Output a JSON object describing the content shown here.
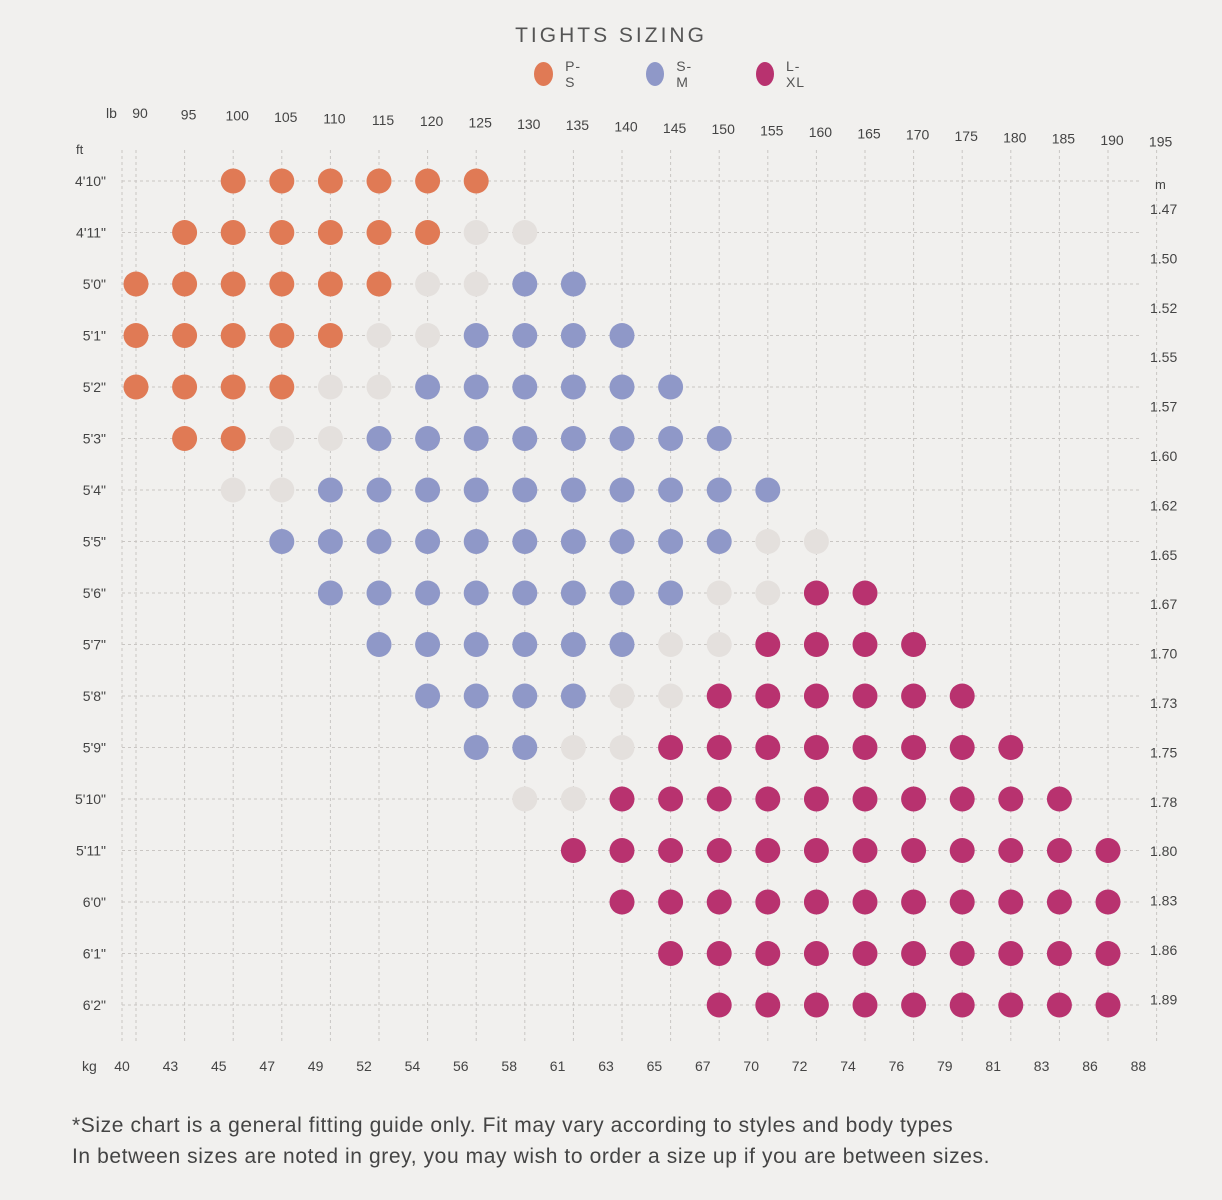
{
  "chart_data": {
    "type": "scatter",
    "title": "TIGHTS SIZING",
    "colors": {
      "P-S": "#e07a55",
      "S-M": "#8f98c8",
      "L-XL": "#b8326f",
      "between": "#e4e0dd"
    },
    "legend": [
      {
        "key": "P-S",
        "label": "P-S"
      },
      {
        "key": "S-M",
        "label": "S-M"
      },
      {
        "key": "L-XL",
        "label": "L-XL"
      }
    ],
    "legend_position": "top-center",
    "grid": true,
    "x_axis_lb": {
      "unit_label": "lb",
      "ticks": [
        "90",
        "95",
        "100",
        "105",
        "110",
        "115",
        "120",
        "125",
        "130",
        "135",
        "140",
        "145",
        "150",
        "155",
        "160",
        "165",
        "170",
        "175",
        "180",
        "185",
        "190",
        "195"
      ]
    },
    "x_axis_kg": {
      "unit_label": "kg",
      "ticks": [
        "40",
        "43",
        "45",
        "47",
        "49",
        "52",
        "54",
        "56",
        "58",
        "61",
        "63",
        "65",
        "67",
        "70",
        "72",
        "74",
        "76",
        "79",
        "81",
        "83",
        "86",
        "88"
      ]
    },
    "y_axis_ft": {
      "unit_label": "ft",
      "ticks": [
        "4'10\"",
        "4'11\"",
        "5'0\"",
        "5'1\"",
        "5'2\"",
        "5'3\"",
        "5'4\"",
        "5'5\"",
        "5'6\"",
        "5'7\"",
        "5'8\"",
        "5'9\"",
        "5'10\"",
        "5'11\"",
        "6'0\"",
        "6'1\"",
        "6'2\""
      ]
    },
    "y_axis_m": {
      "unit_label": "m",
      "ticks": [
        "1.47",
        "1.50",
        "1.52",
        "1.55",
        "1.57",
        "1.60",
        "1.62",
        "1.65",
        "1.67",
        "1.70",
        "1.73",
        "1.75",
        "1.78",
        "1.80",
        "1.83",
        "1.86",
        "1.89"
      ]
    },
    "series": [
      {
        "name": "P-S",
        "points": [
          {
            "lb": 100,
            "height": "4'10\""
          },
          {
            "lb": 105,
            "height": "4'10\""
          },
          {
            "lb": 110,
            "height": "4'10\""
          },
          {
            "lb": 115,
            "height": "4'10\""
          },
          {
            "lb": 120,
            "height": "4'10\""
          },
          {
            "lb": 125,
            "height": "4'10\""
          },
          {
            "lb": 95,
            "height": "4'11\""
          },
          {
            "lb": 100,
            "height": "4'11\""
          },
          {
            "lb": 105,
            "height": "4'11\""
          },
          {
            "lb": 110,
            "height": "4'11\""
          },
          {
            "lb": 115,
            "height": "4'11\""
          },
          {
            "lb": 120,
            "height": "4'11\""
          },
          {
            "lb": 90,
            "height": "5'0\""
          },
          {
            "lb": 95,
            "height": "5'0\""
          },
          {
            "lb": 100,
            "height": "5'0\""
          },
          {
            "lb": 105,
            "height": "5'0\""
          },
          {
            "lb": 110,
            "height": "5'0\""
          },
          {
            "lb": 115,
            "height": "5'0\""
          },
          {
            "lb": 90,
            "height": "5'1\""
          },
          {
            "lb": 95,
            "height": "5'1\""
          },
          {
            "lb": 100,
            "height": "5'1\""
          },
          {
            "lb": 105,
            "height": "5'1\""
          },
          {
            "lb": 110,
            "height": "5'1\""
          },
          {
            "lb": 90,
            "height": "5'2\""
          },
          {
            "lb": 95,
            "height": "5'2\""
          },
          {
            "lb": 100,
            "height": "5'2\""
          },
          {
            "lb": 105,
            "height": "5'2\""
          },
          {
            "lb": 95,
            "height": "5'3\""
          },
          {
            "lb": 100,
            "height": "5'3\""
          }
        ]
      },
      {
        "name": "S-M",
        "points": [
          {
            "lb": 130,
            "height": "5'0\""
          },
          {
            "lb": 135,
            "height": "5'0\""
          },
          {
            "lb": 125,
            "height": "5'1\""
          },
          {
            "lb": 130,
            "height": "5'1\""
          },
          {
            "lb": 135,
            "height": "5'1\""
          },
          {
            "lb": 140,
            "height": "5'1\""
          },
          {
            "lb": 120,
            "height": "5'2\""
          },
          {
            "lb": 125,
            "height": "5'2\""
          },
          {
            "lb": 130,
            "height": "5'2\""
          },
          {
            "lb": 135,
            "height": "5'2\""
          },
          {
            "lb": 140,
            "height": "5'2\""
          },
          {
            "lb": 145,
            "height": "5'2\""
          },
          {
            "lb": 115,
            "height": "5'3\""
          },
          {
            "lb": 120,
            "height": "5'3\""
          },
          {
            "lb": 125,
            "height": "5'3\""
          },
          {
            "lb": 130,
            "height": "5'3\""
          },
          {
            "lb": 135,
            "height": "5'3\""
          },
          {
            "lb": 140,
            "height": "5'3\""
          },
          {
            "lb": 145,
            "height": "5'3\""
          },
          {
            "lb": 150,
            "height": "5'3\""
          },
          {
            "lb": 110,
            "height": "5'4\""
          },
          {
            "lb": 115,
            "height": "5'4\""
          },
          {
            "lb": 120,
            "height": "5'4\""
          },
          {
            "lb": 125,
            "height": "5'4\""
          },
          {
            "lb": 130,
            "height": "5'4\""
          },
          {
            "lb": 135,
            "height": "5'4\""
          },
          {
            "lb": 140,
            "height": "5'4\""
          },
          {
            "lb": 145,
            "height": "5'4\""
          },
          {
            "lb": 150,
            "height": "5'4\""
          },
          {
            "lb": 155,
            "height": "5'4\""
          },
          {
            "lb": 105,
            "height": "5'5\""
          },
          {
            "lb": 110,
            "height": "5'5\""
          },
          {
            "lb": 115,
            "height": "5'5\""
          },
          {
            "lb": 120,
            "height": "5'5\""
          },
          {
            "lb": 125,
            "height": "5'5\""
          },
          {
            "lb": 130,
            "height": "5'5\""
          },
          {
            "lb": 135,
            "height": "5'5\""
          },
          {
            "lb": 140,
            "height": "5'5\""
          },
          {
            "lb": 145,
            "height": "5'5\""
          },
          {
            "lb": 150,
            "height": "5'5\""
          },
          {
            "lb": 110,
            "height": "5'6\""
          },
          {
            "lb": 115,
            "height": "5'6\""
          },
          {
            "lb": 120,
            "height": "5'6\""
          },
          {
            "lb": 125,
            "height": "5'6\""
          },
          {
            "lb": 130,
            "height": "5'6\""
          },
          {
            "lb": 135,
            "height": "5'6\""
          },
          {
            "lb": 140,
            "height": "5'6\""
          },
          {
            "lb": 145,
            "height": "5'6\""
          },
          {
            "lb": 115,
            "height": "5'7\""
          },
          {
            "lb": 120,
            "height": "5'7\""
          },
          {
            "lb": 125,
            "height": "5'7\""
          },
          {
            "lb": 130,
            "height": "5'7\""
          },
          {
            "lb": 135,
            "height": "5'7\""
          },
          {
            "lb": 140,
            "height": "5'7\""
          },
          {
            "lb": 120,
            "height": "5'8\""
          },
          {
            "lb": 125,
            "height": "5'8\""
          },
          {
            "lb": 130,
            "height": "5'8\""
          },
          {
            "lb": 135,
            "height": "5'8\""
          },
          {
            "lb": 125,
            "height": "5'9\""
          },
          {
            "lb": 130,
            "height": "5'9\""
          }
        ]
      },
      {
        "name": "L-XL",
        "points": [
          {
            "lb": 160,
            "height": "5'6\""
          },
          {
            "lb": 165,
            "height": "5'6\""
          },
          {
            "lb": 155,
            "height": "5'7\""
          },
          {
            "lb": 160,
            "height": "5'7\""
          },
          {
            "lb": 165,
            "height": "5'7\""
          },
          {
            "lb": 170,
            "height": "5'7\""
          },
          {
            "lb": 150,
            "height": "5'8\""
          },
          {
            "lb": 155,
            "height": "5'8\""
          },
          {
            "lb": 160,
            "height": "5'8\""
          },
          {
            "lb": 165,
            "height": "5'8\""
          },
          {
            "lb": 170,
            "height": "5'8\""
          },
          {
            "lb": 175,
            "height": "5'8\""
          },
          {
            "lb": 145,
            "height": "5'9\""
          },
          {
            "lb": 150,
            "height": "5'9\""
          },
          {
            "lb": 155,
            "height": "5'9\""
          },
          {
            "lb": 160,
            "height": "5'9\""
          },
          {
            "lb": 165,
            "height": "5'9\""
          },
          {
            "lb": 170,
            "height": "5'9\""
          },
          {
            "lb": 175,
            "height": "5'9\""
          },
          {
            "lb": 180,
            "height": "5'9\""
          },
          {
            "lb": 140,
            "height": "5'10\""
          },
          {
            "lb": 145,
            "height": "5'10\""
          },
          {
            "lb": 150,
            "height": "5'10\""
          },
          {
            "lb": 155,
            "height": "5'10\""
          },
          {
            "lb": 160,
            "height": "5'10\""
          },
          {
            "lb": 165,
            "height": "5'10\""
          },
          {
            "lb": 170,
            "height": "5'10\""
          },
          {
            "lb": 175,
            "height": "5'10\""
          },
          {
            "lb": 180,
            "height": "5'10\""
          },
          {
            "lb": 185,
            "height": "5'10\""
          },
          {
            "lb": 135,
            "height": "5'11\""
          },
          {
            "lb": 140,
            "height": "5'11\""
          },
          {
            "lb": 145,
            "height": "5'11\""
          },
          {
            "lb": 150,
            "height": "5'11\""
          },
          {
            "lb": 155,
            "height": "5'11\""
          },
          {
            "lb": 160,
            "height": "5'11\""
          },
          {
            "lb": 165,
            "height": "5'11\""
          },
          {
            "lb": 170,
            "height": "5'11\""
          },
          {
            "lb": 175,
            "height": "5'11\""
          },
          {
            "lb": 180,
            "height": "5'11\""
          },
          {
            "lb": 185,
            "height": "5'11\""
          },
          {
            "lb": 190,
            "height": "5'11\""
          },
          {
            "lb": 140,
            "height": "6'0\""
          },
          {
            "lb": 145,
            "height": "6'0\""
          },
          {
            "lb": 150,
            "height": "6'0\""
          },
          {
            "lb": 155,
            "height": "6'0\""
          },
          {
            "lb": 160,
            "height": "6'0\""
          },
          {
            "lb": 165,
            "height": "6'0\""
          },
          {
            "lb": 170,
            "height": "6'0\""
          },
          {
            "lb": 175,
            "height": "6'0\""
          },
          {
            "lb": 180,
            "height": "6'0\""
          },
          {
            "lb": 185,
            "height": "6'0\""
          },
          {
            "lb": 190,
            "height": "6'0\""
          },
          {
            "lb": 145,
            "height": "6'1\""
          },
          {
            "lb": 150,
            "height": "6'1\""
          },
          {
            "lb": 155,
            "height": "6'1\""
          },
          {
            "lb": 160,
            "height": "6'1\""
          },
          {
            "lb": 165,
            "height": "6'1\""
          },
          {
            "lb": 170,
            "height": "6'1\""
          },
          {
            "lb": 175,
            "height": "6'1\""
          },
          {
            "lb": 180,
            "height": "6'1\""
          },
          {
            "lb": 185,
            "height": "6'1\""
          },
          {
            "lb": 190,
            "height": "6'1\""
          },
          {
            "lb": 150,
            "height": "6'2\""
          },
          {
            "lb": 155,
            "height": "6'2\""
          },
          {
            "lb": 160,
            "height": "6'2\""
          },
          {
            "lb": 165,
            "height": "6'2\""
          },
          {
            "lb": 170,
            "height": "6'2\""
          },
          {
            "lb": 175,
            "height": "6'2\""
          },
          {
            "lb": 180,
            "height": "6'2\""
          },
          {
            "lb": 185,
            "height": "6'2\""
          },
          {
            "lb": 190,
            "height": "6'2\""
          }
        ]
      },
      {
        "name": "between",
        "points": [
          {
            "lb": 125,
            "height": "4'11\""
          },
          {
            "lb": 130,
            "height": "4'11\""
          },
          {
            "lb": 120,
            "height": "5'0\""
          },
          {
            "lb": 125,
            "height": "5'0\""
          },
          {
            "lb": 115,
            "height": "5'1\""
          },
          {
            "lb": 120,
            "height": "5'1\""
          },
          {
            "lb": 110,
            "height": "5'2\""
          },
          {
            "lb": 115,
            "height": "5'2\""
          },
          {
            "lb": 105,
            "height": "5'3\""
          },
          {
            "lb": 110,
            "height": "5'3\""
          },
          {
            "lb": 100,
            "height": "5'4\""
          },
          {
            "lb": 105,
            "height": "5'4\""
          },
          {
            "lb": 155,
            "height": "5'5\""
          },
          {
            "lb": 160,
            "height": "5'5\""
          },
          {
            "lb": 150,
            "height": "5'6\""
          },
          {
            "lb": 155,
            "height": "5'6\""
          },
          {
            "lb": 145,
            "height": "5'7\""
          },
          {
            "lb": 150,
            "height": "5'7\""
          },
          {
            "lb": 140,
            "height": "5'8\""
          },
          {
            "lb": 145,
            "height": "5'8\""
          },
          {
            "lb": 135,
            "height": "5'9\""
          },
          {
            "lb": 140,
            "height": "5'9\""
          },
          {
            "lb": 130,
            "height": "5'10\""
          },
          {
            "lb": 135,
            "height": "5'10\""
          }
        ]
      }
    ]
  },
  "footnote": {
    "line1": "*Size chart is a general fitting guide only. Fit may vary according to styles and body types",
    "line2": "In between sizes are noted in grey, you may wish to order a size up if you are between sizes."
  }
}
